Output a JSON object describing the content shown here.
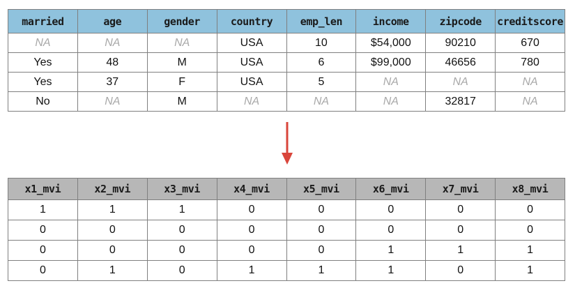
{
  "top_table": {
    "headers": [
      "married",
      "age",
      "gender",
      "country",
      "emp_len",
      "income",
      "zipcode",
      "creditscore"
    ],
    "rows": [
      [
        "NA",
        "NA",
        "NA",
        "USA",
        "10",
        "$54,000",
        "90210",
        "670"
      ],
      [
        "Yes",
        "48",
        "M",
        "USA",
        "6",
        "$99,000",
        "46656",
        "780"
      ],
      [
        "Yes",
        "37",
        "F",
        "USA",
        "5",
        "NA",
        "NA",
        "NA"
      ],
      [
        "No",
        "NA",
        "M",
        "NA",
        "NA",
        "NA",
        "32817",
        "NA"
      ]
    ],
    "header_color": "#8fc2dd",
    "missing_text_color": "#a8a8a8"
  },
  "arrow": {
    "icon": "arrow-down-icon",
    "color": "#d9453b"
  },
  "bottom_table": {
    "headers": [
      "x1_mvi",
      "x2_mvi",
      "x3_mvi",
      "x4_mvi",
      "x5_mvi",
      "x6_mvi",
      "x7_mvi",
      "x8_mvi"
    ],
    "rows": [
      [
        "1",
        "1",
        "1",
        "0",
        "0",
        "0",
        "0",
        "0"
      ],
      [
        "0",
        "0",
        "0",
        "0",
        "0",
        "0",
        "0",
        "0"
      ],
      [
        "0",
        "0",
        "0",
        "0",
        "0",
        "1",
        "1",
        "1"
      ],
      [
        "0",
        "1",
        "0",
        "1",
        "1",
        "1",
        "0",
        "1"
      ]
    ],
    "header_color": "#b7b7b7"
  }
}
